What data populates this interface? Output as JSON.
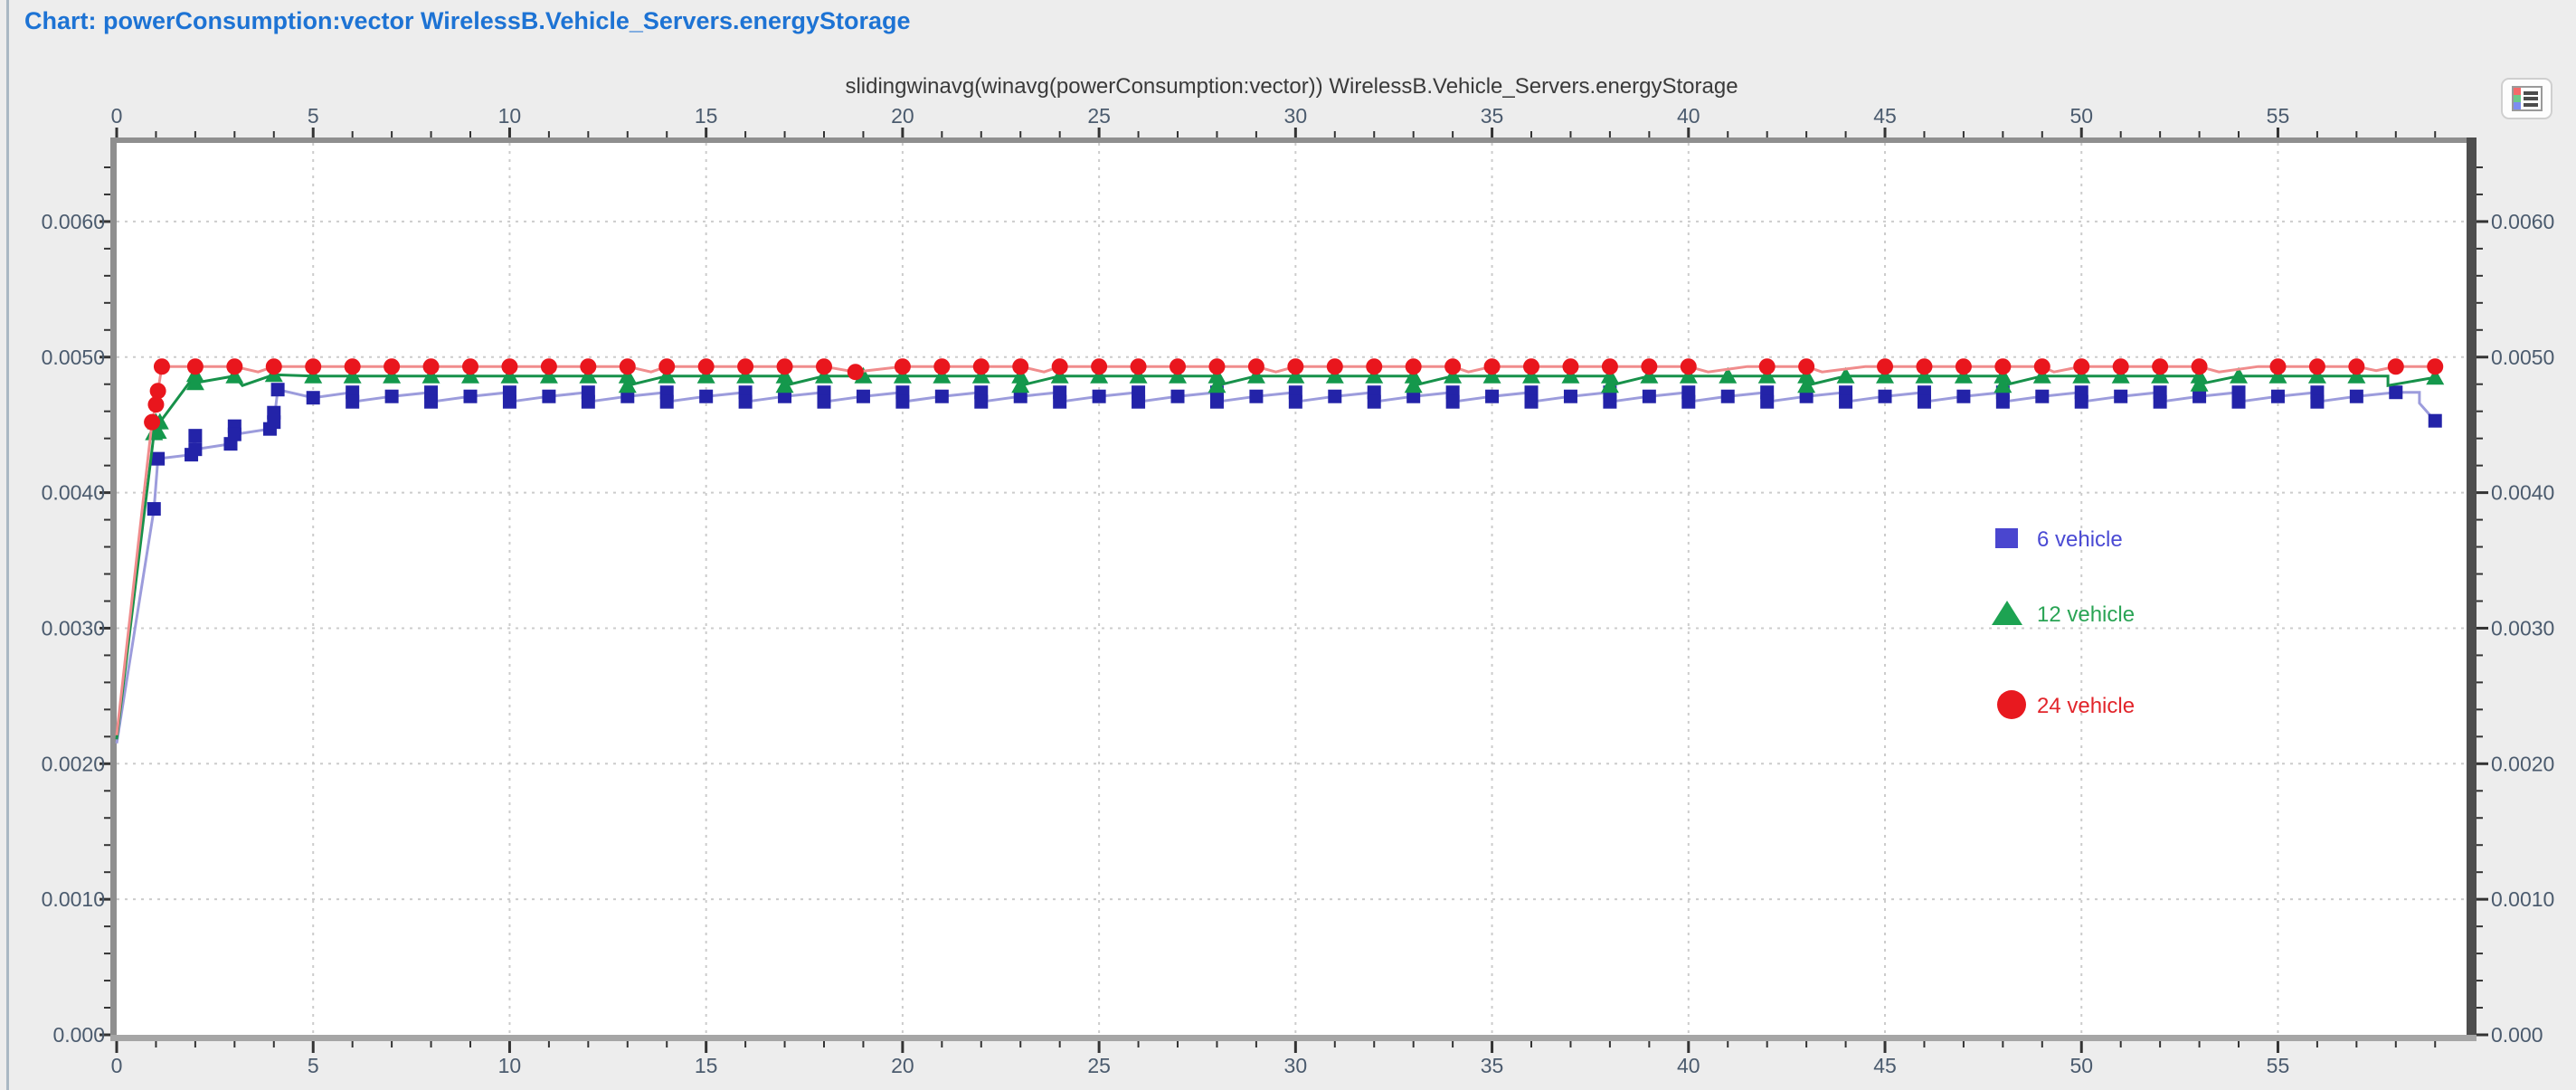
{
  "window": {
    "title": "Chart: powerConsumption:vector WirelessB.Vehicle_Servers.energyStorage"
  },
  "toolbar": {
    "legend_button": "legend-toggle"
  },
  "chart_data": {
    "type": "line",
    "title": "slidingwinavg(winavg(powerConsumption:vector)) WirelessB.Vehicle_Servers.energyStorage",
    "grid": "dashed",
    "style": {
      "plot_bg": "#ffffff",
      "outer_bg": "#ededed",
      "grid_color": "#cccccc",
      "axis_bar_top_left": "#8f8f8f",
      "axis_bar_bottom": "#a6a6a6",
      "axis_bar_right": "#4e4e4e",
      "tick_color": "#333333",
      "tick_label_color": "#4b5b6e",
      "title_color": "#1d73d4",
      "subtitle_color": "#3a3a3a"
    },
    "x_axis": {
      "min": 0,
      "max": 59.8,
      "major_ticks": [
        0,
        5,
        10,
        15,
        20,
        25,
        30,
        35,
        40,
        45,
        50,
        55
      ],
      "tick_labels": [
        "0",
        "5",
        "10",
        "15",
        "20",
        "25",
        "30",
        "35",
        "40",
        "45",
        "50",
        "55"
      ],
      "minor_tick_step": 1,
      "position": "top-and-bottom"
    },
    "y_axis": {
      "min": 0,
      "max": 0.00658,
      "major_ticks": [
        0,
        0.001,
        0.002,
        0.003,
        0.004,
        0.005,
        0.006
      ],
      "tick_labels": [
        "0.000",
        "0.0010",
        "0.0020",
        "0.0030",
        "0.0040",
        "0.0050",
        "0.0060"
      ],
      "minor_tick_step": 0.0002,
      "position": "left-and-right"
    },
    "legend": {
      "position": "in-plot-right",
      "items": [
        {
          "label": "6 vehicle",
          "marker": "square",
          "swatch_color": "#4a46cf",
          "text_color": "#4a4ad4"
        },
        {
          "label": "12 vehicle",
          "marker": "triangle",
          "swatch_color": "#1da352",
          "text_color": "#2aa455"
        },
        {
          "label": "24 vehicle",
          "marker": "circle",
          "swatch_color": "#e8191f",
          "text_color": "#e2252b"
        }
      ]
    },
    "series": [
      {
        "name": "6 vehicle",
        "marker": "square",
        "marker_color": "#2323a8",
        "line_color": "#9c9cdc",
        "points": [
          [
            0,
            0.00215
          ],
          [
            0.95,
            0.00388
          ],
          [
            1.05,
            0.00425
          ],
          [
            1.9,
            0.00428
          ],
          [
            2,
            0.00442
          ],
          [
            2,
            0.00432
          ],
          [
            2.9,
            0.00436
          ],
          [
            3,
            0.00449
          ],
          [
            3,
            0.00443
          ],
          [
            3.9,
            0.00447
          ],
          [
            4,
            0.00459
          ],
          [
            4,
            0.00452
          ],
          [
            4.1,
            0.00476
          ],
          [
            5,
            0.0047
          ],
          [
            6,
            0.00474
          ],
          [
            6,
            0.00467
          ],
          [
            7,
            0.00471
          ],
          [
            8,
            0.00474
          ],
          [
            8,
            0.00467
          ],
          [
            9,
            0.00471
          ],
          [
            10,
            0.00474
          ],
          [
            10,
            0.00467
          ],
          [
            11,
            0.00471
          ],
          [
            12,
            0.00474
          ],
          [
            12,
            0.00467
          ],
          [
            13,
            0.00471
          ],
          [
            14,
            0.00474
          ],
          [
            14,
            0.00467
          ],
          [
            15,
            0.00471
          ],
          [
            16,
            0.00474
          ],
          [
            16,
            0.00467
          ],
          [
            17,
            0.00471
          ],
          [
            18,
            0.00474
          ],
          [
            18,
            0.00467
          ],
          [
            19,
            0.00471
          ],
          [
            20,
            0.00474
          ],
          [
            20,
            0.00467
          ],
          [
            21,
            0.00471
          ],
          [
            22,
            0.00474
          ],
          [
            22,
            0.00467
          ],
          [
            23,
            0.00471
          ],
          [
            24,
            0.00474
          ],
          [
            24,
            0.00467
          ],
          [
            25,
            0.00471
          ],
          [
            26,
            0.00474
          ],
          [
            26,
            0.00467
          ],
          [
            27,
            0.00471
          ],
          [
            28,
            0.00474
          ],
          [
            28,
            0.00467
          ],
          [
            29,
            0.00471
          ],
          [
            30,
            0.00474
          ],
          [
            30,
            0.00467
          ],
          [
            31,
            0.00471
          ],
          [
            32,
            0.00474
          ],
          [
            32,
            0.00467
          ],
          [
            33,
            0.00471
          ],
          [
            34,
            0.00474
          ],
          [
            34,
            0.00467
          ],
          [
            35,
            0.00471
          ],
          [
            36,
            0.00474
          ],
          [
            36,
            0.00467
          ],
          [
            37,
            0.00471
          ],
          [
            38,
            0.00474
          ],
          [
            38,
            0.00467
          ],
          [
            39,
            0.00471
          ],
          [
            40,
            0.00474
          ],
          [
            40,
            0.00467
          ],
          [
            41,
            0.00471
          ],
          [
            42,
            0.00474
          ],
          [
            42,
            0.00467
          ],
          [
            43,
            0.00471
          ],
          [
            44,
            0.00474
          ],
          [
            44,
            0.00467
          ],
          [
            45,
            0.00471
          ],
          [
            46,
            0.00474
          ],
          [
            46,
            0.00467
          ],
          [
            47,
            0.00471
          ],
          [
            48,
            0.00474
          ],
          [
            48,
            0.00467
          ],
          [
            49,
            0.00471
          ],
          [
            50,
            0.00474
          ],
          [
            50,
            0.00467
          ],
          [
            51,
            0.00471
          ],
          [
            52,
            0.00474
          ],
          [
            52,
            0.00467
          ],
          [
            53,
            0.00471
          ],
          [
            54,
            0.00474
          ],
          [
            54,
            0.00467
          ],
          [
            55,
            0.00471
          ],
          [
            56,
            0.00474
          ],
          [
            56,
            0.00467
          ],
          [
            57,
            0.00471
          ],
          [
            58,
            0.00474
          ],
          [
            58.6,
            0.00474
          ],
          [
            58.6,
            0.00466
          ],
          [
            59,
            0.00453
          ]
        ]
      },
      {
        "name": "12 vehicle",
        "marker": "triangle",
        "marker_color": "#14984c",
        "line_color": "#17914a",
        "points": [
          [
            0,
            0.00218
          ],
          [
            0.95,
            0.00444
          ],
          [
            1,
            0.00452
          ],
          [
            1.05,
            0.00445
          ],
          [
            1.1,
            0.00452
          ],
          [
            2,
            0.00487
          ],
          [
            2,
            0.00481
          ],
          [
            3,
            0.00486
          ],
          [
            3.2,
            0.00479
          ],
          [
            4,
            0.00487
          ],
          [
            5,
            0.00486
          ],
          [
            6,
            0.00486
          ],
          [
            7,
            0.00486
          ],
          [
            8,
            0.00486
          ],
          [
            9,
            0.00486
          ],
          [
            10,
            0.00486
          ],
          [
            11,
            0.00486
          ],
          [
            12,
            0.00486
          ],
          [
            13,
            0.00486
          ],
          [
            13,
            0.00479
          ],
          [
            14,
            0.00486
          ],
          [
            15,
            0.00486
          ],
          [
            16,
            0.00486
          ],
          [
            17,
            0.00486
          ],
          [
            17,
            0.00479
          ],
          [
            18,
            0.00486
          ],
          [
            19,
            0.00486
          ],
          [
            20,
            0.00486
          ],
          [
            21,
            0.00486
          ],
          [
            22,
            0.00486
          ],
          [
            23,
            0.00486
          ],
          [
            23,
            0.00479
          ],
          [
            24,
            0.00486
          ],
          [
            25,
            0.00486
          ],
          [
            26,
            0.00486
          ],
          [
            27,
            0.00486
          ],
          [
            28,
            0.00486
          ],
          [
            28,
            0.00479
          ],
          [
            29,
            0.00486
          ],
          [
            30,
            0.00486
          ],
          [
            31,
            0.00486
          ],
          [
            32,
            0.00486
          ],
          [
            33,
            0.00486
          ],
          [
            33,
            0.00479
          ],
          [
            34,
            0.00486
          ],
          [
            35,
            0.00486
          ],
          [
            36,
            0.00486
          ],
          [
            37,
            0.00486
          ],
          [
            38,
            0.00486
          ],
          [
            38,
            0.00479
          ],
          [
            39,
            0.00486
          ],
          [
            40,
            0.00486
          ],
          [
            41,
            0.00486
          ],
          [
            42,
            0.00486
          ],
          [
            43,
            0.00486
          ],
          [
            43,
            0.00479
          ],
          [
            44,
            0.00486
          ],
          [
            45,
            0.00486
          ],
          [
            46,
            0.00486
          ],
          [
            47,
            0.00486
          ],
          [
            48,
            0.00486
          ],
          [
            48,
            0.00479
          ],
          [
            49,
            0.00486
          ],
          [
            50,
            0.00486
          ],
          [
            51,
            0.00486
          ],
          [
            52,
            0.00486
          ],
          [
            53,
            0.00486
          ],
          [
            53,
            0.0048
          ],
          [
            54,
            0.00486
          ],
          [
            55,
            0.00486
          ],
          [
            56,
            0.00486
          ],
          [
            57,
            0.00486
          ],
          [
            57.8,
            0.00486
          ],
          [
            57.8,
            0.00479
          ],
          [
            59,
            0.00485
          ]
        ]
      },
      {
        "name": "24 vehicle",
        "marker": "circle",
        "marker_color": "#e9161d",
        "line_color": "#f08c8c",
        "points": [
          [
            0,
            0.00221
          ],
          [
            0.9,
            0.00452
          ],
          [
            1,
            0.00465
          ],
          [
            1.05,
            0.00475
          ],
          [
            1.15,
            0.00493
          ],
          [
            2,
            0.00493
          ],
          [
            3,
            0.00493
          ],
          [
            3.6,
            0.00489
          ],
          [
            4,
            0.00493
          ],
          [
            5,
            0.00493
          ],
          [
            6,
            0.00493
          ],
          [
            7,
            0.00493
          ],
          [
            8,
            0.00493
          ],
          [
            9,
            0.00493
          ],
          [
            10,
            0.00493
          ],
          [
            11,
            0.00493
          ],
          [
            12,
            0.00493
          ],
          [
            13,
            0.00493
          ],
          [
            13.6,
            0.00489
          ],
          [
            14,
            0.00493
          ],
          [
            15,
            0.00493
          ],
          [
            16,
            0.00493
          ],
          [
            17,
            0.00493
          ],
          [
            18,
            0.00493
          ],
          [
            18.8,
            0.00489
          ],
          [
            20,
            0.00493
          ],
          [
            21,
            0.00493
          ],
          [
            22,
            0.00493
          ],
          [
            23,
            0.00493
          ],
          [
            23.6,
            0.00489
          ],
          [
            24,
            0.00493
          ],
          [
            25,
            0.00493
          ],
          [
            26,
            0.00493
          ],
          [
            27,
            0.00493
          ],
          [
            28,
            0.00493
          ],
          [
            29,
            0.00493
          ],
          [
            29.5,
            0.00489
          ],
          [
            30,
            0.00493
          ],
          [
            31,
            0.00493
          ],
          [
            32,
            0.00493
          ],
          [
            33,
            0.00493
          ],
          [
            34,
            0.00493
          ],
          [
            34.4,
            0.00489
          ],
          [
            35,
            0.00493
          ],
          [
            36,
            0.00493
          ],
          [
            37,
            0.00493
          ],
          [
            38,
            0.00493
          ],
          [
            39,
            0.00493
          ],
          [
            40,
            0.00493
          ],
          [
            40.5,
            0.00489
          ],
          [
            41.5,
            0.00493
          ],
          [
            42,
            0.00493
          ],
          [
            43,
            0.00493
          ],
          [
            43.4,
            0.00489
          ],
          [
            44.5,
            0.00493
          ],
          [
            45,
            0.00493
          ],
          [
            46,
            0.00493
          ],
          [
            47,
            0.00493
          ],
          [
            48,
            0.00493
          ],
          [
            49,
            0.00493
          ],
          [
            49.3,
            0.00489
          ],
          [
            50,
            0.00493
          ],
          [
            51,
            0.00493
          ],
          [
            52,
            0.00493
          ],
          [
            53,
            0.00493
          ],
          [
            53.5,
            0.00489
          ],
          [
            54.5,
            0.00493
          ],
          [
            55,
            0.00493
          ],
          [
            56,
            0.00493
          ],
          [
            57,
            0.00493
          ],
          [
            57.5,
            0.0049
          ],
          [
            58,
            0.00493
          ],
          [
            59,
            0.00493
          ]
        ]
      }
    ]
  }
}
